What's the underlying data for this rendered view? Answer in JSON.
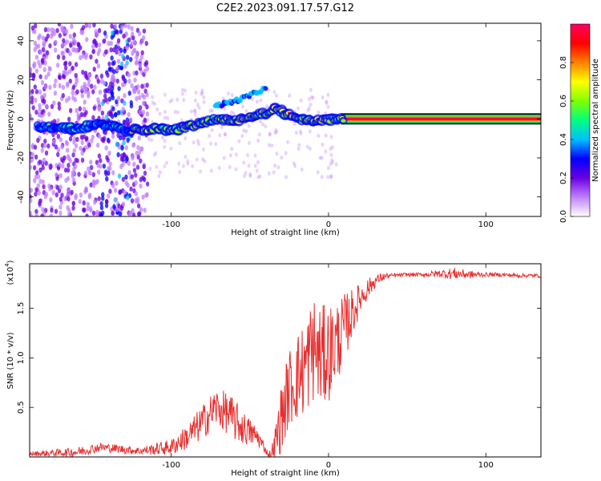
{
  "title": "C2E2.2023.091.17.57.G12",
  "chart_data": [
    {
      "type": "heatmap",
      "title": "C2E2.2023.091.17.57.G12",
      "xlabel": "Height of straight line (km)",
      "ylabel": "Frequency (Hz)",
      "xlim": [
        -190,
        135
      ],
      "ylim": [
        -50,
        49
      ],
      "xticks": [
        -100,
        0,
        100
      ],
      "xtick_labels": [
        "-100",
        "0",
        "100"
      ],
      "yticks": [
        -40,
        -20,
        0,
        20,
        40
      ],
      "ytick_labels": [
        "-40",
        "-20",
        "0",
        "20",
        "40"
      ],
      "colorbar": {
        "label": "Normalized spectral amplitude",
        "range": [
          0,
          1
        ],
        "ticks": [
          0.0,
          0.2,
          0.4,
          0.6,
          0.8
        ],
        "tick_labels": [
          "0.0",
          "0.2",
          "0.4",
          "0.6",
          "0.8"
        ],
        "colors": [
          "#ffffff",
          "#c080ff",
          "#6a00e0",
          "#0000ff",
          "#00c0ff",
          "#00ff80",
          "#80ff00",
          "#ffff00",
          "#ff8000",
          "#ff0000",
          "#ff0060"
        ]
      },
      "ridge": {
        "x": [
          -180,
          -160,
          -150,
          -140,
          -130,
          -120,
          -110,
          -100,
          -90,
          -80,
          -70,
          -60,
          -50,
          -40,
          -35,
          -30,
          -20,
          -10,
          0,
          10,
          135
        ],
        "y": [
          -4,
          -5,
          -3,
          -3,
          -6,
          -6,
          -5,
          -6,
          -4,
          -2,
          0,
          -1,
          1,
          3,
          5,
          4,
          0,
          -1,
          0,
          0,
          0
        ]
      },
      "secondary_trace": {
        "x": [
          -70,
          -60,
          -50,
          -42
        ],
        "y": [
          7,
          9,
          12,
          15
        ]
      },
      "saturated_from_x": 8
    },
    {
      "type": "line",
      "xlabel": "Height of straight line (km)",
      "ylabel": "SNR (10 * v/v)",
      "scale_label": "(x10",
      "scale_exponent": "4",
      "xlim": [
        -190,
        135
      ],
      "ylim": [
        0,
        1.95
      ],
      "xticks": [
        -100,
        0,
        100
      ],
      "xtick_labels": [
        "-100",
        "0",
        "100"
      ],
      "yticks": [
        0.5,
        1.0,
        1.5
      ],
      "ytick_labels": [
        "0.5",
        "1.0",
        "1.5"
      ],
      "color": "#e83030",
      "envelope": {
        "x": [
          -190,
          -160,
          -145,
          -120,
          -100,
          -90,
          -80,
          -72,
          -65,
          -55,
          -45,
          -38,
          -35,
          -30,
          -25,
          -20,
          -15,
          -10,
          -5,
          0,
          5,
          10,
          15,
          20,
          25,
          30,
          35,
          40,
          50,
          60,
          70,
          80,
          90,
          100,
          110,
          120,
          135
        ],
        "y": [
          0.03,
          0.05,
          0.1,
          0.06,
          0.1,
          0.2,
          0.35,
          0.5,
          0.45,
          0.3,
          0.2,
          0.02,
          0.05,
          0.4,
          0.7,
          0.8,
          0.9,
          1.1,
          1.0,
          1.05,
          1.15,
          1.3,
          1.45,
          1.6,
          1.7,
          1.78,
          1.82,
          1.83,
          1.84,
          1.84,
          1.85,
          1.85,
          1.84,
          1.84,
          1.84,
          1.83,
          1.83
        ]
      },
      "noise": {
        "x": [
          -190,
          -160,
          -120,
          -100,
          -80,
          -60,
          -45,
          -38,
          -30,
          -10,
          0,
          10,
          20,
          30,
          40,
          60,
          80,
          100,
          135
        ],
        "amp": [
          0.02,
          0.05,
          0.04,
          0.08,
          0.18,
          0.22,
          0.1,
          0.02,
          0.35,
          0.55,
          0.5,
          0.35,
          0.15,
          0.06,
          0.02,
          0.02,
          0.06,
          0.02,
          0.02
        ]
      }
    }
  ]
}
